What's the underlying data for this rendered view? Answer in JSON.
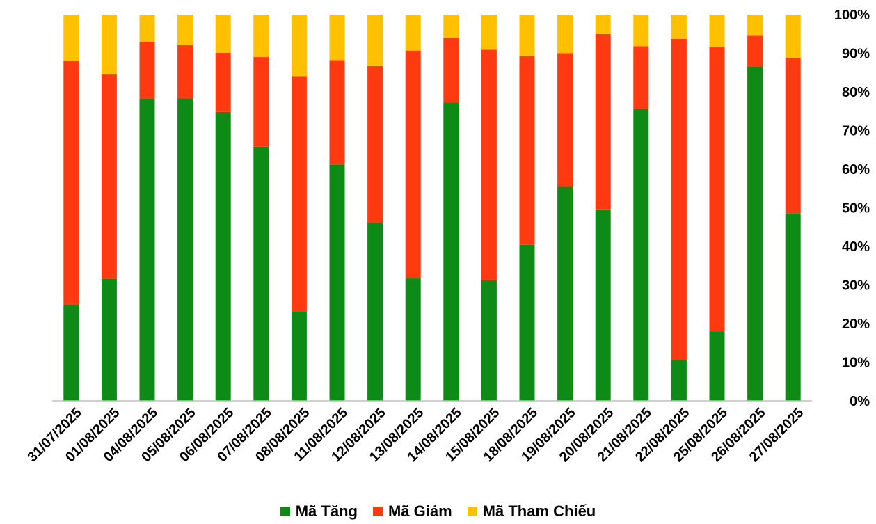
{
  "chart_data": {
    "type": "bar",
    "stacked": true,
    "normalized": true,
    "categories": [
      "31/07/2025",
      "01/08/2025",
      "04/08/2025",
      "05/08/2025",
      "06/08/2025",
      "07/08/2025",
      "08/08/2025",
      "11/08/2025",
      "12/08/2025",
      "13/08/2025",
      "14/08/2025",
      "15/08/2025",
      "18/08/2025",
      "19/08/2025",
      "20/08/2025",
      "21/08/2025",
      "22/08/2025",
      "25/08/2025",
      "26/08/2025",
      "27/08/2025"
    ],
    "series": [
      {
        "name": "Mã Tăng",
        "color": "#0E8A16",
        "values": [
          25,
          31.6,
          78.2,
          78.3,
          74.8,
          65.8,
          23.2,
          61.2,
          46.2,
          31.7,
          77.2,
          31.2,
          40.4,
          55.4,
          49.4,
          75.6,
          10.6,
          18.0,
          86.6,
          48.6
        ]
      },
      {
        "name": "Mã Giảm",
        "color": "#FF3A11",
        "values": [
          63,
          52.9,
          14.8,
          13.8,
          15.3,
          23.2,
          60.9,
          27.0,
          40.5,
          59.0,
          16.8,
          59.7,
          48.8,
          34.6,
          45.6,
          16.2,
          83.1,
          73.6,
          7.9,
          40.2
        ]
      },
      {
        "name": "Mã Tham Chiếu",
        "color": "#FFC000",
        "values": [
          12,
          15.5,
          7.0,
          7.9,
          9.9,
          11.0,
          15.9,
          11.8,
          13.3,
          9.3,
          6.0,
          9.1,
          10.8,
          10.0,
          5.0,
          8.2,
          6.3,
          8.4,
          5.5,
          11.2
        ]
      }
    ],
    "y_ticks": [
      "0%",
      "10%",
      "20%",
      "30%",
      "40%",
      "50%",
      "60%",
      "70%",
      "80%",
      "90%",
      "100%"
    ],
    "ylim": [
      0,
      100
    ],
    "y_axis_position": "right",
    "grid": false,
    "legend_position": "bottom"
  }
}
